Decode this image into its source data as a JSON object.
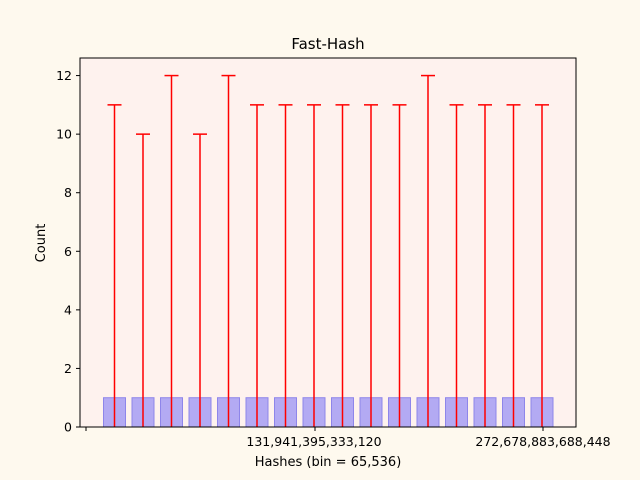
{
  "chart_data": {
    "type": "bar",
    "title": "Fast-Hash",
    "xlabel": "Hashes (bin = 65,536)",
    "ylabel": "Count",
    "ylim": [
      0,
      12.6
    ],
    "yticks": [
      0,
      2,
      4,
      6,
      8,
      10,
      12
    ],
    "xticks_labels": [
      "131,941,395,333,120",
      "272,678,883,688,448"
    ],
    "bar_value": 1,
    "error_upper": [
      11,
      10,
      12,
      10,
      12,
      11,
      11,
      11,
      11,
      11,
      11,
      12,
      11,
      11,
      11,
      11
    ],
    "grid": false,
    "colors": {
      "figure_bg": "#fef9ee",
      "plot_bg": "#fef2ee",
      "bar_fill": "#b3aaf3",
      "bar_edge": "#8e85ea",
      "error": "#ff0000"
    }
  }
}
